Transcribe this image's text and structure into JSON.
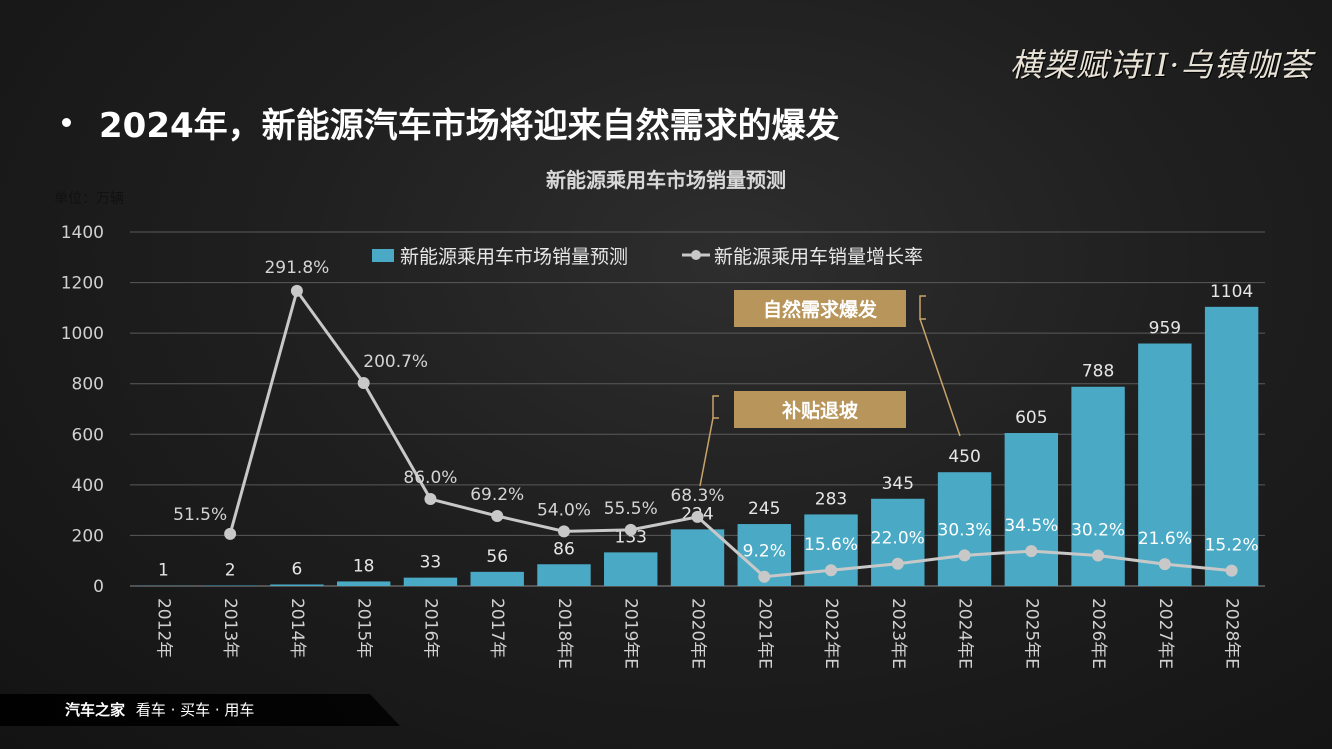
{
  "header": {
    "logo_text": "横槊赋诗II·乌镇咖荟",
    "heading": "2024年，新能源汽车市场将迎来自然需求的爆发"
  },
  "footer": {
    "brand": "汽车之家",
    "slogan": "看车 · 买车 · 用车"
  },
  "chart_data": {
    "type": "bar+line",
    "title": "新能源乘用车市场销量预测",
    "unit_label": "单位：万辆",
    "categories": [
      "2012年",
      "2013年",
      "2014年",
      "2015年",
      "2016年",
      "2017年",
      "2018年E",
      "2019年E",
      "2020年E",
      "2021年E",
      "2022年E",
      "2023年E",
      "2024年E",
      "2025年E",
      "2026年E",
      "2027年E",
      "2028年E"
    ],
    "ylim": [
      0,
      1400
    ],
    "yticks": [
      0,
      200,
      400,
      600,
      800,
      1000,
      1200,
      1400
    ],
    "grid": true,
    "legend_position": "top",
    "series": [
      {
        "name": "新能源乘用车市场销量预测",
        "kind": "bar",
        "color": "#4aaac6",
        "values": [
          1,
          2,
          6,
          18,
          33,
          56,
          86,
          133,
          224,
          245,
          283,
          345,
          450,
          605,
          788,
          959,
          1104
        ]
      },
      {
        "name": "新能源乘用车销量增长率",
        "kind": "line",
        "color": "#c8c8c8",
        "values": [
          null,
          51.5,
          291.8,
          200.7,
          86.0,
          69.2,
          54.0,
          55.5,
          68.3,
          9.2,
          15.6,
          22.0,
          30.3,
          34.5,
          30.2,
          21.6,
          15.2
        ],
        "labels": [
          "",
          "51.5%",
          "291.8%",
          "200.7%",
          "86.0%",
          "69.2%",
          "54.0%",
          "55.5%",
          "68.3%",
          "9.2%",
          "15.6%",
          "22.0%",
          "30.3%",
          "34.5%",
          "30.2%",
          "21.6%",
          "15.2%"
        ]
      }
    ],
    "annotations": [
      {
        "text": "补贴退坡",
        "points_to": "2020年E"
      },
      {
        "text": "自然需求爆发",
        "points_to": "2024年E"
      }
    ],
    "colors": {
      "annotation_bg": "#b8955a",
      "grid": "#5a5a5a",
      "axis_text": "#d0d0d0"
    }
  }
}
